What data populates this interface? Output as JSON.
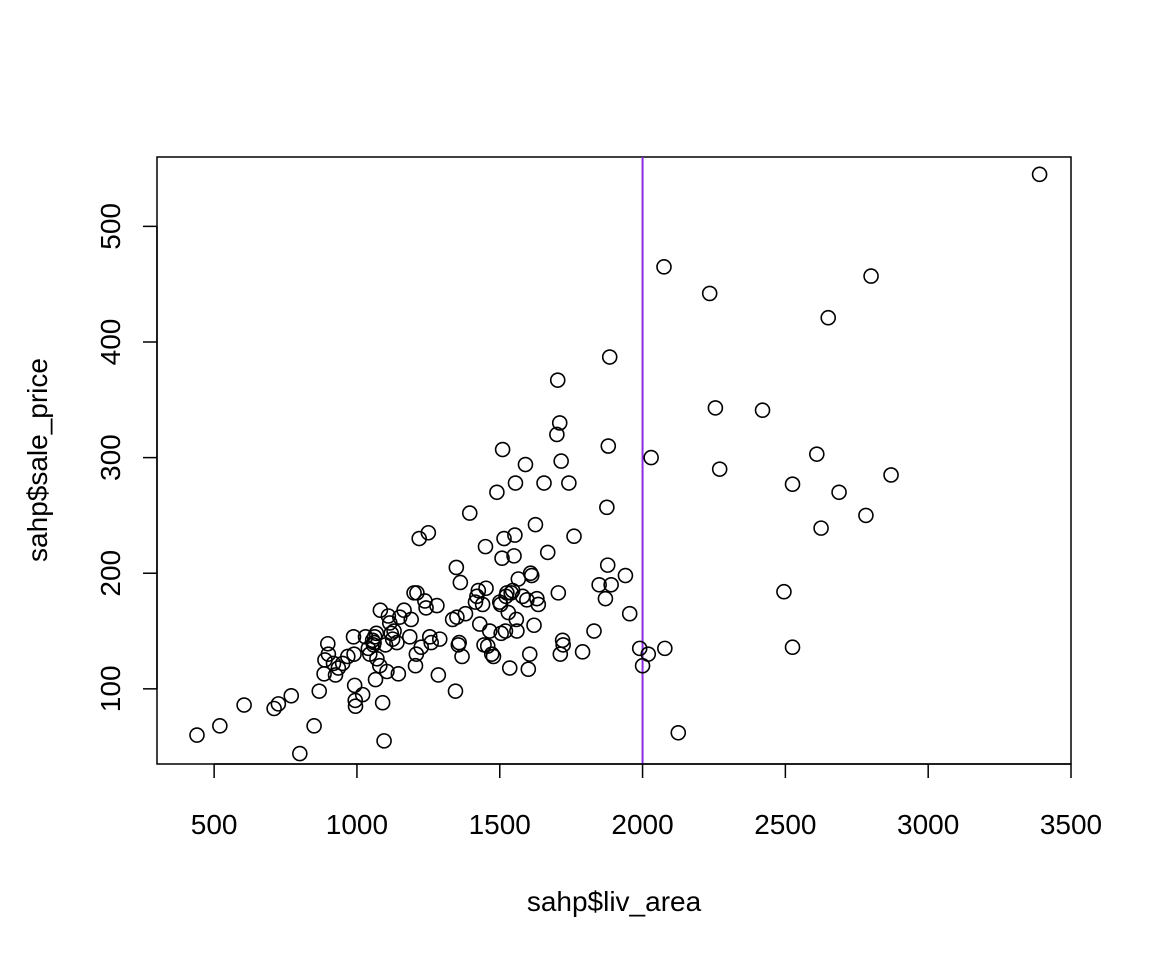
{
  "chart_data": {
    "type": "scatter",
    "title": "",
    "xlabel": "sahp$liv_area",
    "ylabel": "sahp$sale_price",
    "xlim": [
      300,
      3500
    ],
    "ylim": [
      35,
      560
    ],
    "x_ticks": [
      500,
      1000,
      1500,
      2000,
      2500,
      3000,
      3500
    ],
    "y_ticks": [
      100,
      200,
      300,
      400,
      500
    ],
    "grid": false,
    "legend": "none",
    "marker": "open-circle",
    "point_color": "#000000",
    "reference_line": {
      "orientation": "vertical",
      "x": 2000,
      "color": "#8a2be2"
    },
    "points": [
      [
        440,
        60
      ],
      [
        520,
        68
      ],
      [
        605,
        86
      ],
      [
        710,
        83
      ],
      [
        725,
        87
      ],
      [
        770,
        94
      ],
      [
        800,
        44
      ],
      [
        850,
        68
      ],
      [
        868,
        98
      ],
      [
        885,
        113
      ],
      [
        888,
        125
      ],
      [
        898,
        139
      ],
      [
        900,
        130
      ],
      [
        918,
        122
      ],
      [
        925,
        112
      ],
      [
        935,
        118
      ],
      [
        950,
        122
      ],
      [
        968,
        128
      ],
      [
        988,
        145
      ],
      [
        990,
        130
      ],
      [
        992,
        103
      ],
      [
        994,
        90
      ],
      [
        995,
        85
      ],
      [
        1020,
        95
      ],
      [
        1030,
        145
      ],
      [
        1040,
        135
      ],
      [
        1045,
        130
      ],
      [
        1055,
        142
      ],
      [
        1058,
        138
      ],
      [
        1060,
        140
      ],
      [
        1062,
        145
      ],
      [
        1065,
        108
      ],
      [
        1068,
        148
      ],
      [
        1070,
        126
      ],
      [
        1080,
        120
      ],
      [
        1082,
        168
      ],
      [
        1090,
        88
      ],
      [
        1095,
        55
      ],
      [
        1100,
        138
      ],
      [
        1105,
        115
      ],
      [
        1110,
        163
      ],
      [
        1115,
        157
      ],
      [
        1120,
        148
      ],
      [
        1125,
        143
      ],
      [
        1130,
        150
      ],
      [
        1140,
        140
      ],
      [
        1145,
        113
      ],
      [
        1150,
        162
      ],
      [
        1165,
        168
      ],
      [
        1185,
        145
      ],
      [
        1190,
        160
      ],
      [
        1200,
        183
      ],
      [
        1205,
        120
      ],
      [
        1208,
        130
      ],
      [
        1210,
        183
      ],
      [
        1218,
        230
      ],
      [
        1225,
        136
      ],
      [
        1238,
        176
      ],
      [
        1242,
        170
      ],
      [
        1250,
        235
      ],
      [
        1255,
        145
      ],
      [
        1260,
        140
      ],
      [
        1280,
        172
      ],
      [
        1285,
        112
      ],
      [
        1290,
        143
      ],
      [
        1335,
        160
      ],
      [
        1345,
        98
      ],
      [
        1348,
        205
      ],
      [
        1350,
        162
      ],
      [
        1355,
        138
      ],
      [
        1358,
        140
      ],
      [
        1362,
        192
      ],
      [
        1368,
        128
      ],
      [
        1380,
        165
      ],
      [
        1395,
        252
      ],
      [
        1415,
        175
      ],
      [
        1420,
        180
      ],
      [
        1425,
        185
      ],
      [
        1430,
        156
      ],
      [
        1440,
        173
      ],
      [
        1445,
        138
      ],
      [
        1450,
        223
      ],
      [
        1452,
        187
      ],
      [
        1458,
        137
      ],
      [
        1465,
        150
      ],
      [
        1472,
        130
      ],
      [
        1478,
        128
      ],
      [
        1490,
        270
      ],
      [
        1500,
        175
      ],
      [
        1503,
        173
      ],
      [
        1505,
        148
      ],
      [
        1508,
        213
      ],
      [
        1510,
        307
      ],
      [
        1515,
        230
      ],
      [
        1520,
        150
      ],
      [
        1522,
        180
      ],
      [
        1525,
        183
      ],
      [
        1530,
        166
      ],
      [
        1535,
        118
      ],
      [
        1540,
        183
      ],
      [
        1545,
        185
      ],
      [
        1550,
        215
      ],
      [
        1553,
        233
      ],
      [
        1555,
        278
      ],
      [
        1558,
        160
      ],
      [
        1560,
        150
      ],
      [
        1565,
        195
      ],
      [
        1580,
        180
      ],
      [
        1590,
        294
      ],
      [
        1595,
        177
      ],
      [
        1600,
        117
      ],
      [
        1605,
        130
      ],
      [
        1608,
        200
      ],
      [
        1612,
        198
      ],
      [
        1620,
        155
      ],
      [
        1625,
        242
      ],
      [
        1630,
        178
      ],
      [
        1635,
        173
      ],
      [
        1655,
        278
      ],
      [
        1668,
        218
      ],
      [
        1700,
        320
      ],
      [
        1703,
        367
      ],
      [
        1705,
        183
      ],
      [
        1710,
        330
      ],
      [
        1712,
        130
      ],
      [
        1715,
        297
      ],
      [
        1720,
        142
      ],
      [
        1722,
        138
      ],
      [
        1742,
        278
      ],
      [
        1760,
        232
      ],
      [
        1790,
        132
      ],
      [
        1830,
        150
      ],
      [
        1848,
        190
      ],
      [
        1870,
        178
      ],
      [
        1875,
        257
      ],
      [
        1878,
        207
      ],
      [
        1880,
        310
      ],
      [
        1885,
        387
      ],
      [
        1890,
        190
      ],
      [
        1940,
        198
      ],
      [
        1955,
        165
      ],
      [
        1990,
        135
      ],
      [
        2000,
        120
      ],
      [
        2020,
        130
      ],
      [
        2030,
        300
      ],
      [
        2075,
        465
      ],
      [
        2078,
        135
      ],
      [
        2125,
        62
      ],
      [
        2235,
        442
      ],
      [
        2255,
        343
      ],
      [
        2270,
        290
      ],
      [
        2420,
        341
      ],
      [
        2495,
        184
      ],
      [
        2525,
        136
      ],
      [
        2525,
        277
      ],
      [
        2610,
        303
      ],
      [
        2625,
        239
      ],
      [
        2650,
        421
      ],
      [
        2688,
        270
      ],
      [
        2782,
        250
      ],
      [
        2800,
        457
      ],
      [
        2870,
        285
      ],
      [
        3390,
        545
      ]
    ]
  }
}
